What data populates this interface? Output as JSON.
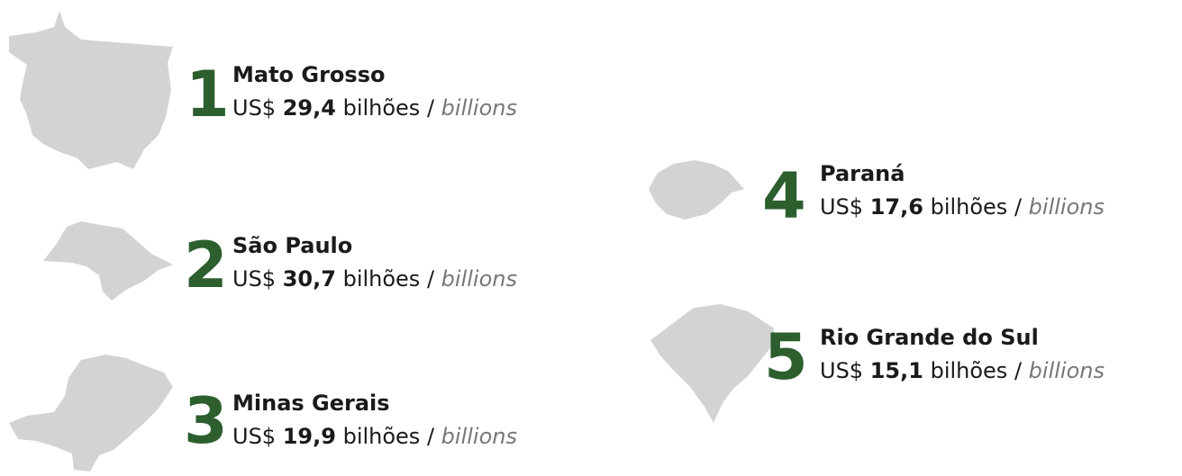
{
  "items": [
    {
      "rank": "1",
      "name": "Mato Grosso",
      "currency": "US$",
      "value": "29,4",
      "unit": "bilhões /",
      "unit_en": "billions"
    },
    {
      "rank": "2",
      "name": "São Paulo",
      "currency": "US$",
      "value": "30,7",
      "unit": "bilhões /",
      "unit_en": "billions"
    },
    {
      "rank": "3",
      "name": "Minas Gerais",
      "currency": "US$",
      "value": "19,9",
      "unit": "bilhões /",
      "unit_en": "billions"
    },
    {
      "rank": "4",
      "name": "Paraná",
      "currency": "US$",
      "value": "17,6",
      "unit": "bilhões /",
      "unit_en": "billions"
    },
    {
      "rank": "5",
      "name": "Rio Grande do Sul",
      "currency": "US$",
      "value": "15,1",
      "unit": "bilhões /",
      "unit_en": "billions"
    }
  ]
}
